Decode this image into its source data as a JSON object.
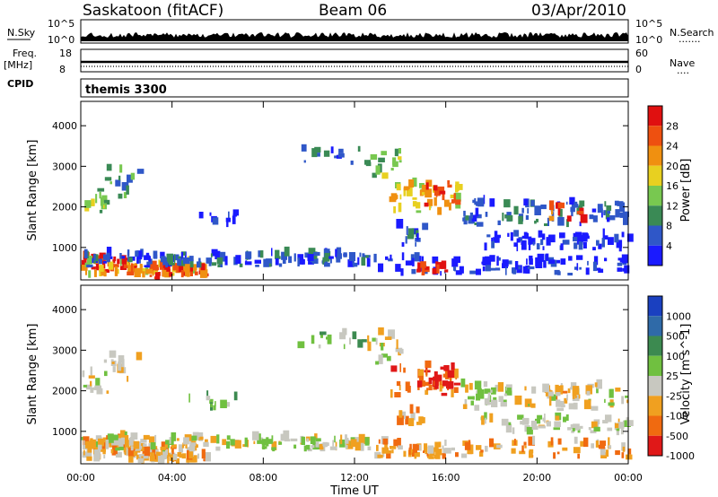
{
  "header": {
    "station": "Saskatoon (fitACF)",
    "beam": "Beam 06",
    "date": "03/Apr/2010"
  },
  "strip_labels": {
    "nsky": "N.Sky",
    "nsearch": "N.Search",
    "nsearch_dots": "·······",
    "freq_line1": "Freq.",
    "freq_line2": "[MHz]",
    "nave": "Nave",
    "nave_dots": "····",
    "cpid": "CPID",
    "cpid_value": "themis 3300"
  },
  "strip_ticks": {
    "nsky_top": "10^5",
    "nsky_bottom": "10^0",
    "nsearch_top": "10^5",
    "nsearch_bottom": "10^0",
    "freq_top": "18",
    "freq_bottom": "8",
    "nave_top": "60",
    "nave_bottom": "0"
  },
  "chart_data": [
    {
      "type": "heatmap",
      "name": "power",
      "ylabel": "Slant Range [km]",
      "yticks": [
        "1000",
        "2000",
        "3000",
        "4000"
      ],
      "ylim": [
        200,
        4600
      ],
      "colorbar_label": "Power [dB]",
      "colorbar_ticks": [
        "4",
        "8",
        "12",
        "16",
        "20",
        "24",
        "28"
      ],
      "colorbar_colors": [
        "#1a1aff",
        "#2f57c8",
        "#3a8a55",
        "#78c850",
        "#e8d020",
        "#f09010",
        "#ee5010",
        "#e01010"
      ],
      "xticks": [
        "00:00",
        "04:00",
        "08:00",
        "12:00",
        "16:00",
        "20:00",
        "00:00"
      ],
      "xlim_hours": [
        0,
        24
      ]
    },
    {
      "type": "heatmap",
      "name": "velocity",
      "ylabel": "Slant Range [km]",
      "yticks": [
        "1000",
        "2000",
        "3000",
        "4000"
      ],
      "ylim": [
        200,
        4600
      ],
      "colorbar_label": "Velocity [m s^-1]",
      "colorbar_ticks": [
        "1000",
        "500",
        "100",
        "25",
        "-25",
        "-100",
        "-500",
        "-1000"
      ],
      "colorbar_colors": [
        "#1a40c0",
        "#2f6aa8",
        "#3c8a50",
        "#70c040",
        "#c8c8c0",
        "#f0a020",
        "#f06a10",
        "#e01818"
      ],
      "xlabel": "Time UT",
      "xticks": [
        "00:00",
        "04:00",
        "08:00",
        "12:00",
        "16:00",
        "20:00",
        "00:00"
      ],
      "xlim_hours": [
        0,
        24
      ]
    }
  ]
}
